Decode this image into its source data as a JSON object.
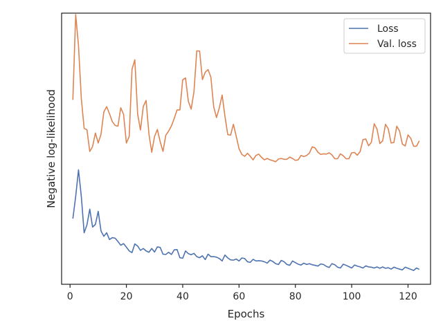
{
  "chart_data": {
    "type": "line",
    "title": "",
    "xlabel": "Epochs",
    "ylabel": "Negative log-likelihood",
    "xlim": [
      -3,
      128
    ],
    "ylim": [
      0,
      100
    ],
    "xticks": [
      0,
      20,
      40,
      60,
      80,
      100,
      120
    ],
    "xtick_labels": [
      "0",
      "20",
      "40",
      "60",
      "80",
      "100",
      "120"
    ],
    "yticks_visible": false,
    "grid": false,
    "legend_position": "top-right",
    "x": [
      1,
      2,
      3,
      4,
      5,
      6,
      7,
      8,
      9,
      10,
      11,
      12,
      13,
      14,
      15,
      16,
      17,
      18,
      19,
      20,
      21,
      22,
      23,
      24,
      25,
      26,
      27,
      28,
      29,
      30,
      31,
      32,
      33,
      34,
      35,
      36,
      37,
      38,
      39,
      40,
      41,
      42,
      43,
      44,
      45,
      46,
      47,
      48,
      49,
      50,
      51,
      52,
      53,
      54,
      55,
      56,
      57,
      58,
      59,
      60,
      61,
      62,
      63,
      64,
      65,
      66,
      67,
      68,
      69,
      70,
      71,
      72,
      73,
      74,
      75,
      76,
      77,
      78,
      79,
      80,
      81,
      82,
      83,
      84,
      85,
      86,
      87,
      88,
      89,
      90,
      91,
      92,
      93,
      94,
      95,
      96,
      97,
      98,
      99,
      100,
      101,
      102,
      103,
      104,
      105,
      106,
      107,
      108,
      109,
      110,
      111,
      112,
      113,
      114,
      115,
      116,
      117,
      118,
      119,
      120,
      121,
      122,
      123,
      124
    ],
    "series": [
      {
        "name": "Loss",
        "color": "#4c72b0",
        "values": [
          24.2,
          32.4,
          42.2,
          32.4,
          19.0,
          21.9,
          27.7,
          21.1,
          22.1,
          26.9,
          19.6,
          17.7,
          19.0,
          16.5,
          17.2,
          17.0,
          15.8,
          14.4,
          15.0,
          13.7,
          12.3,
          11.7,
          14.9,
          14.1,
          12.5,
          13.2,
          12.3,
          11.8,
          13.2,
          11.9,
          13.8,
          13.6,
          11.1,
          11.0,
          11.8,
          11.0,
          12.7,
          12.8,
          9.8,
          9.6,
          12.3,
          11.3,
          10.9,
          11.4,
          10.2,
          9.8,
          10.5,
          9.1,
          11.1,
          10.2,
          10.2,
          10.0,
          9.5,
          8.6,
          10.8,
          9.7,
          9.0,
          8.9,
          9.3,
          8.6,
          9.7,
          9.5,
          8.3,
          8.1,
          9.2,
          8.6,
          8.7,
          8.6,
          8.3,
          7.8,
          8.9,
          8.4,
          7.6,
          7.3,
          8.8,
          8.3,
          7.3,
          7.0,
          8.6,
          8.0,
          7.4,
          7.1,
          7.8,
          7.3,
          7.6,
          7.2,
          7.0,
          6.7,
          7.5,
          7.3,
          6.6,
          6.2,
          7.6,
          7.2,
          6.3,
          6.0,
          7.4,
          7.0,
          6.5,
          6.0,
          7.1,
          6.7,
          6.4,
          6.0,
          6.8,
          6.4,
          6.3,
          6.0,
          6.4,
          5.9,
          6.4,
          5.9,
          6.1,
          5.6,
          6.3,
          5.9,
          5.6,
          5.3,
          6.3,
          5.9,
          5.5,
          5.1,
          6.0,
          5.5
        ]
      },
      {
        "name": "Val. loss",
        "color": "#dd8452",
        "values": [
          68.0,
          99.5,
          88.0,
          68.5,
          57.5,
          57.0,
          49.0,
          50.8,
          55.8,
          52.1,
          55.4,
          63.6,
          65.5,
          62.9,
          60.0,
          58.6,
          58.3,
          65.1,
          62.7,
          52.1,
          54.5,
          79.3,
          82.8,
          62.8,
          56.9,
          65.6,
          67.8,
          55.5,
          48.7,
          54.5,
          57.1,
          52.6,
          49.0,
          55.0,
          56.5,
          58.4,
          61.2,
          64.3,
          64.3,
          75.4,
          76.1,
          67.5,
          64.6,
          71.0,
          86.1,
          86.0,
          75.5,
          78.2,
          79.2,
          76.4,
          65.5,
          61.5,
          65.1,
          69.8,
          62.0,
          55.2,
          55.0,
          59.0,
          54.6,
          50.0,
          47.9,
          47.2,
          48.3,
          47.2,
          45.9,
          47.5,
          48.0,
          46.8,
          45.9,
          46.4,
          45.9,
          45.6,
          45.2,
          46.2,
          46.4,
          46.1,
          46.1,
          46.9,
          46.4,
          45.7,
          45.9,
          47.5,
          47.1,
          47.5,
          48.4,
          50.7,
          50.3,
          48.7,
          47.9,
          48.1,
          48.0,
          48.5,
          47.7,
          46.3,
          46.3,
          48.1,
          47.4,
          46.3,
          46.3,
          48.5,
          48.6,
          47.6,
          48.9,
          53.3,
          53.6,
          51.1,
          52.4,
          59.2,
          57.2,
          51.9,
          52.9,
          59.0,
          57.3,
          52.1,
          52.3,
          58.3,
          56.5,
          51.7,
          51.0,
          55.1,
          53.8,
          50.9,
          50.9,
          52.9
        ]
      }
    ]
  }
}
